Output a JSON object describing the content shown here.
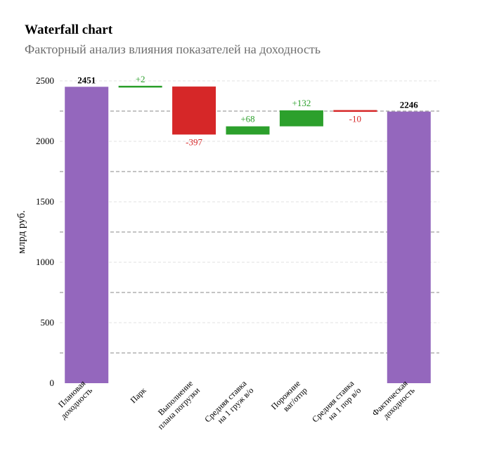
{
  "header": {
    "title": "Waterfall chart",
    "subtitle": "Факторный анализ влияния показателей на доходность"
  },
  "chart_data": {
    "type": "waterfall",
    "ylabel": "млрд руб.",
    "ylim": [
      0,
      2500
    ],
    "yticks": [
      0,
      500,
      1000,
      1500,
      2000,
      2500
    ],
    "grid": true,
    "colors": {
      "total": "#9467bd",
      "increase": "#2ca02c",
      "decrease": "#d62728"
    },
    "categories": [
      {
        "label": [
          "Плановая",
          "доходность"
        ],
        "kind": "total",
        "value": 2451,
        "text": "2451"
      },
      {
        "label": [
          "Парк"
        ],
        "kind": "delta",
        "value": 2,
        "text": "+2"
      },
      {
        "label": [
          "Выполнение",
          "плана погрузки"
        ],
        "kind": "delta",
        "value": -397,
        "text": "-397"
      },
      {
        "label": [
          "Средняя ставка",
          "на 1 груж в/о"
        ],
        "kind": "delta",
        "value": 68,
        "text": "+68"
      },
      {
        "label": [
          "Порожние",
          "ваг/отпр"
        ],
        "kind": "delta",
        "value": 132,
        "text": "+132"
      },
      {
        "label": [
          "Средняя ставка",
          "на 1 пор в/о"
        ],
        "kind": "delta",
        "value": -10,
        "text": "-10"
      },
      {
        "label": [
          "Фактическая",
          "доходность"
        ],
        "kind": "total",
        "value": 2246,
        "text": "2246"
      }
    ]
  }
}
